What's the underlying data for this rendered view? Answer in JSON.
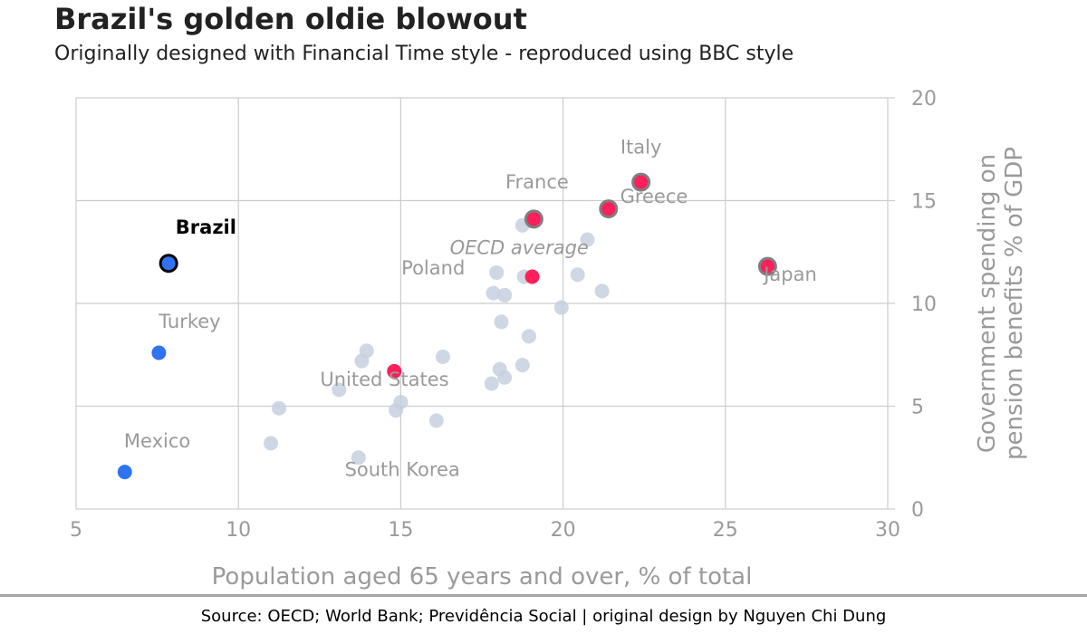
{
  "header": {
    "title": "Brazil's golden oldie blowout",
    "subtitle": "Originally designed with Financial Time style - reproduced using BBC style"
  },
  "footer": {
    "source": "Source: OECD; World Bank; Previdência Social | original design by Nguyen Chi Dung"
  },
  "colors": {
    "background_points": "#c5d0de",
    "highlight": "#ff1f5a",
    "highlight_ring": "#7f7f7f",
    "latam": "#2f73f0",
    "label_grey": "#9a9a9a",
    "grid": "#cccccc"
  },
  "chart_data": {
    "type": "scatter",
    "title": "Brazil's golden oldie blowout",
    "subtitle": "Originally designed with Financial Time style - reproduced using BBC style",
    "xlabel": "Population aged 65 years and over, % of total",
    "ylabel": "Government spending on\npension benefits % of GDP",
    "xlim": [
      5,
      30
    ],
    "ylim": [
      0,
      20
    ],
    "xticks": [
      5,
      10,
      15,
      20,
      25,
      30
    ],
    "yticks": [
      0,
      5,
      10,
      15,
      20
    ],
    "grid": true,
    "y_axis_side": "right",
    "series": [
      {
        "group": "other",
        "points": [
          {
            "x": 11.0,
            "y": 3.2
          },
          {
            "x": 11.25,
            "y": 4.9
          },
          {
            "x": 13.1,
            "y": 5.8
          },
          {
            "x": 13.7,
            "y": 2.5
          },
          {
            "x": 13.8,
            "y": 7.2
          },
          {
            "x": 13.95,
            "y": 7.7
          },
          {
            "x": 14.85,
            "y": 4.8
          },
          {
            "x": 15.0,
            "y": 5.2
          },
          {
            "x": 16.1,
            "y": 4.3
          },
          {
            "x": 16.3,
            "y": 7.4
          },
          {
            "x": 17.8,
            "y": 6.1
          },
          {
            "x": 17.85,
            "y": 10.5
          },
          {
            "x": 17.95,
            "y": 11.5
          },
          {
            "x": 18.05,
            "y": 6.8
          },
          {
            "x": 18.1,
            "y": 9.1
          },
          {
            "x": 18.2,
            "y": 6.4
          },
          {
            "x": 18.2,
            "y": 10.4
          },
          {
            "x": 18.75,
            "y": 7.0
          },
          {
            "x": 18.75,
            "y": 13.8
          },
          {
            "x": 18.8,
            "y": 11.3
          },
          {
            "x": 18.95,
            "y": 8.4
          },
          {
            "x": 19.95,
            "y": 9.8
          },
          {
            "x": 20.45,
            "y": 11.4
          },
          {
            "x": 20.75,
            "y": 13.1
          },
          {
            "x": 21.2,
            "y": 10.6
          }
        ]
      },
      {
        "group": "highlight",
        "points": [
          {
            "name": "Italy",
            "x": 22.4,
            "y": 15.9,
            "ring": true
          },
          {
            "name": "France",
            "x": 19.1,
            "y": 14.1,
            "ring": true
          },
          {
            "name": "Greece",
            "x": 21.4,
            "y": 14.6,
            "ring": true
          },
          {
            "name": "Japan",
            "x": 26.3,
            "y": 11.8,
            "ring": true
          },
          {
            "name": "OECD average",
            "x": 19.05,
            "y": 11.3,
            "ring": false
          },
          {
            "name": "United States",
            "x": 14.8,
            "y": 6.7,
            "ring": false
          }
        ]
      },
      {
        "group": "latam",
        "points": [
          {
            "name": "Brazil",
            "x": 7.85,
            "y": 11.95,
            "ring": true
          },
          {
            "name": "Turkey",
            "x": 7.55,
            "y": 7.6,
            "ring": false
          },
          {
            "name": "Mexico",
            "x": 6.5,
            "y": 1.8,
            "ring": false
          }
        ]
      }
    ],
    "annotations": [
      {
        "text": "Italy",
        "x": 22.4,
        "y": 17.3,
        "style": "grey"
      },
      {
        "text": "France",
        "x": 19.2,
        "y": 15.6,
        "style": "grey"
      },
      {
        "text": "Greece",
        "x": 22.8,
        "y": 14.9,
        "style": "grey"
      },
      {
        "text": "Japan",
        "x": 27.0,
        "y": 11.1,
        "style": "grey"
      },
      {
        "text": "OECD average",
        "x": 18.65,
        "y": 12.4,
        "style": "grey-italic"
      },
      {
        "text": "Poland",
        "x": 16.0,
        "y": 11.4,
        "style": "grey"
      },
      {
        "text": "United States",
        "x": 14.5,
        "y": 6.0,
        "style": "grey"
      },
      {
        "text": "South Korea",
        "x": 15.05,
        "y": 1.6,
        "style": "grey"
      },
      {
        "text": "Turkey",
        "x": 8.5,
        "y": 8.8,
        "style": "grey"
      },
      {
        "text": "Mexico",
        "x": 7.5,
        "y": 3.0,
        "style": "grey"
      },
      {
        "text": "Brazil",
        "x": 9.0,
        "y": 13.4,
        "style": "bold"
      }
    ]
  }
}
